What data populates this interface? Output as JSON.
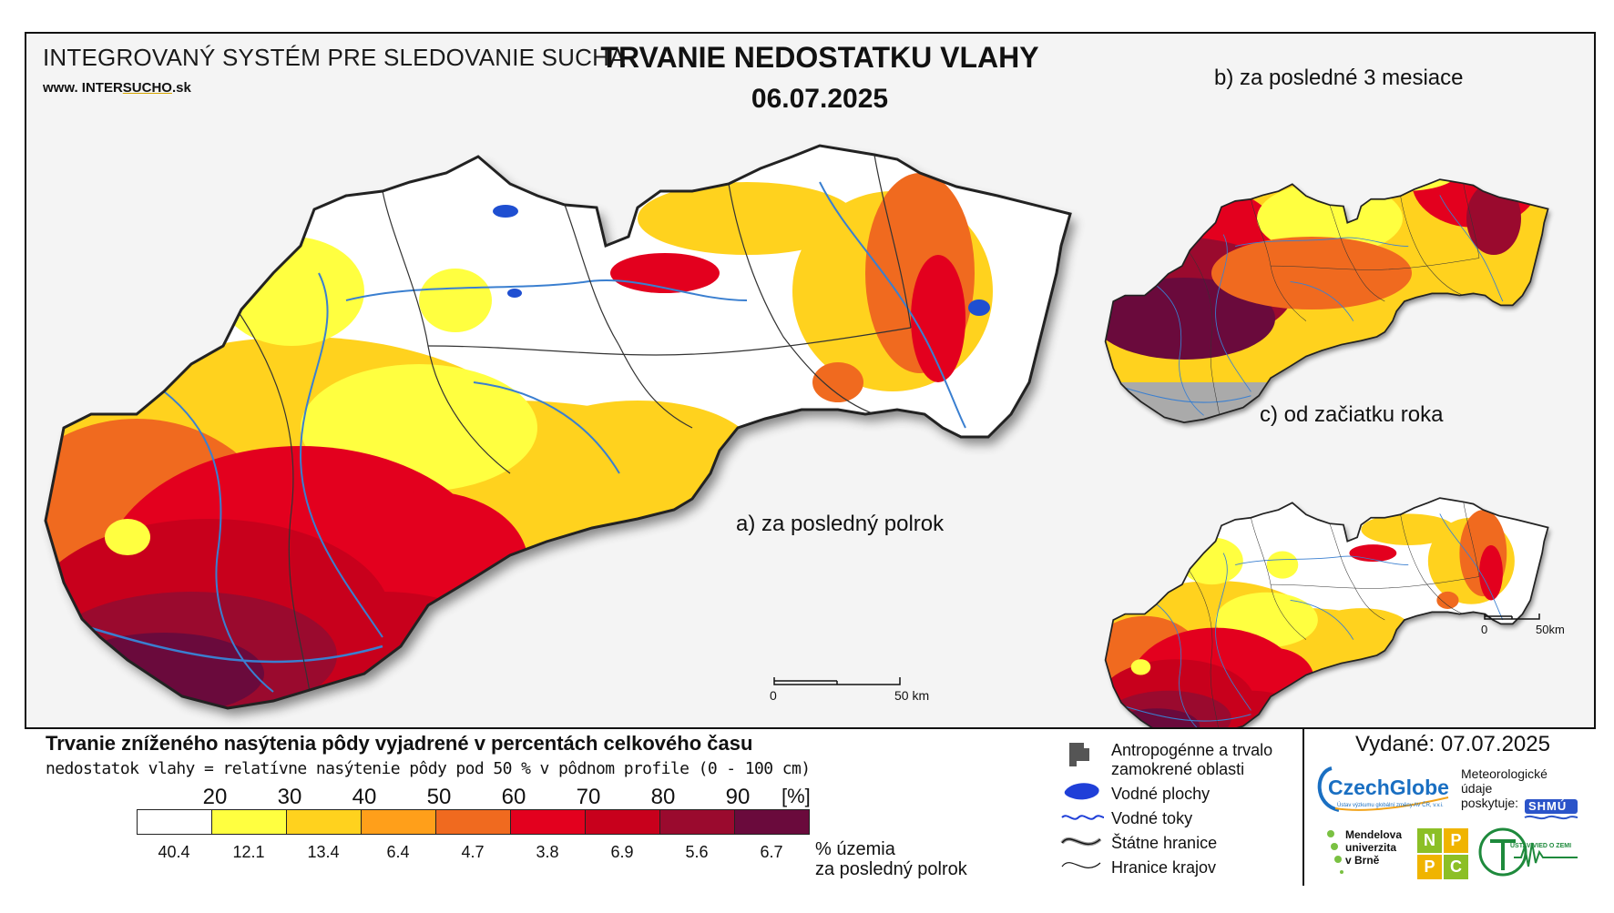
{
  "header": {
    "system_title": "INTEGROVANÝ SYSTÉM PRE SLEDOVANIE SUCHA",
    "website_prefix": "www. INTER",
    "website_brand": "SUCHO",
    "website_suffix": ".sk",
    "main_title": "TRVANIE NEDOSTATKU VLAHY",
    "date": "06.07.2025"
  },
  "maps": {
    "main_label": "a) za posledný polrok",
    "inset_b_label": "b) za posledné 3 mesiace",
    "inset_c_label": "c) od začiatku roka",
    "scale_main": {
      "zero": "0",
      "end": "50 km"
    },
    "scale_inset": {
      "zero": "0",
      "end": "50km"
    }
  },
  "legend": {
    "title": "Trvanie zníženého nasýtenia pôdy vyjadrené v percentách celkového času",
    "subtitle": "nedostatok vlahy = relatívne nasýtenie pôdy pod 50 % v pôdnom profile (0 - 100 cm)",
    "thresholds": [
      "20",
      "30",
      "40",
      "50",
      "60",
      "70",
      "80",
      "90"
    ],
    "unit": "[%]",
    "colors": [
      "#ffffff",
      "#ffff40",
      "#ffd21e",
      "#ff9f1a",
      "#f06a1f",
      "#e3001e",
      "#c8001c",
      "#9a0a2e",
      "#6a0a3c"
    ],
    "percent_of_territory": [
      "40.4",
      "12.1",
      "13.4",
      "6.4",
      "4.7",
      "3.8",
      "6.9",
      "5.6",
      "6.7"
    ],
    "percent_caption_1": "% územia",
    "percent_caption_2": "za posledný polrok"
  },
  "map_legend": {
    "anthropogenic_1": "Antropogénne a trvalo",
    "anthropogenic_2": "zamokrené oblasti",
    "water_bodies": "Vodné plochy",
    "water_streams": "Vodné toky",
    "state_borders": "Štátne hranice",
    "region_borders": "Hranice krajov"
  },
  "issued": {
    "label": "Vydané: 07.07.2025",
    "meteo_1": "Meteorologické",
    "meteo_2": "údaje",
    "meteo_3": "poskytuje:"
  },
  "logos": {
    "czechglobe": "CzechGlobe",
    "czechglobe_sub": "Ústav výzkumu globální změny AV ČR, v.v.i.",
    "shmu": "SHMÚ",
    "mendel_1": "Mendelova",
    "mendel_2": "univerzita",
    "mendel_3": "v Brně",
    "nppc": [
      "N",
      "P",
      "P",
      "C"
    ],
    "uvz": "ÚSTAV VIED O ZEMI"
  }
}
